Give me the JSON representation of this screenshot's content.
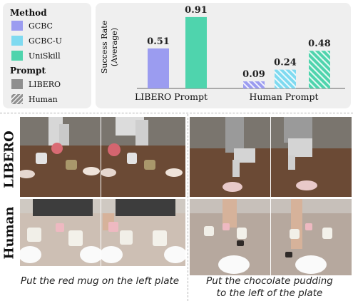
{
  "legend": {
    "method_title": "Method",
    "methods": [
      {
        "label": "GCBC",
        "color": "#9b9cf0"
      },
      {
        "label": "GCBC-U",
        "color": "#7fdaf0"
      },
      {
        "label": "UniSkill",
        "color": "#4fd4ad"
      }
    ],
    "prompt_title": "Prompt",
    "prompts": [
      {
        "label": "LIBERO",
        "style": "solid"
      },
      {
        "label": "Human",
        "style": "hatched"
      }
    ]
  },
  "chart_data": {
    "type": "bar",
    "ylabel": "Success Rate\n(Average)",
    "ylim": [
      0,
      1.0
    ],
    "grid": false,
    "groups": [
      {
        "label": "LIBERO Prompt",
        "hatched": false,
        "bars": [
          {
            "method": "GCBC",
            "value": 0.51,
            "label": "0.51",
            "color": "#9b9cf0"
          },
          {
            "method": "UniSkill",
            "value": 0.91,
            "label": "0.91",
            "color": "#4fd4ad"
          }
        ]
      },
      {
        "label": "Human Prompt",
        "hatched": true,
        "bars": [
          {
            "method": "GCBC",
            "value": 0.09,
            "label": "0.09",
            "color": "#9b9cf0"
          },
          {
            "method": "GCBC-U",
            "value": 0.24,
            "label": "0.24",
            "color": "#7fdaf0"
          },
          {
            "method": "UniSkill",
            "value": 0.48,
            "label": "0.48",
            "color": "#4fd4ad"
          }
        ]
      }
    ]
  },
  "rows": {
    "libero_label": "LIBERO",
    "human_label": "Human"
  },
  "captions": {
    "left": "Put the red mug on the left plate",
    "right_line1": "Put the chocolate pudding",
    "right_line2": "to the left of the plate"
  }
}
